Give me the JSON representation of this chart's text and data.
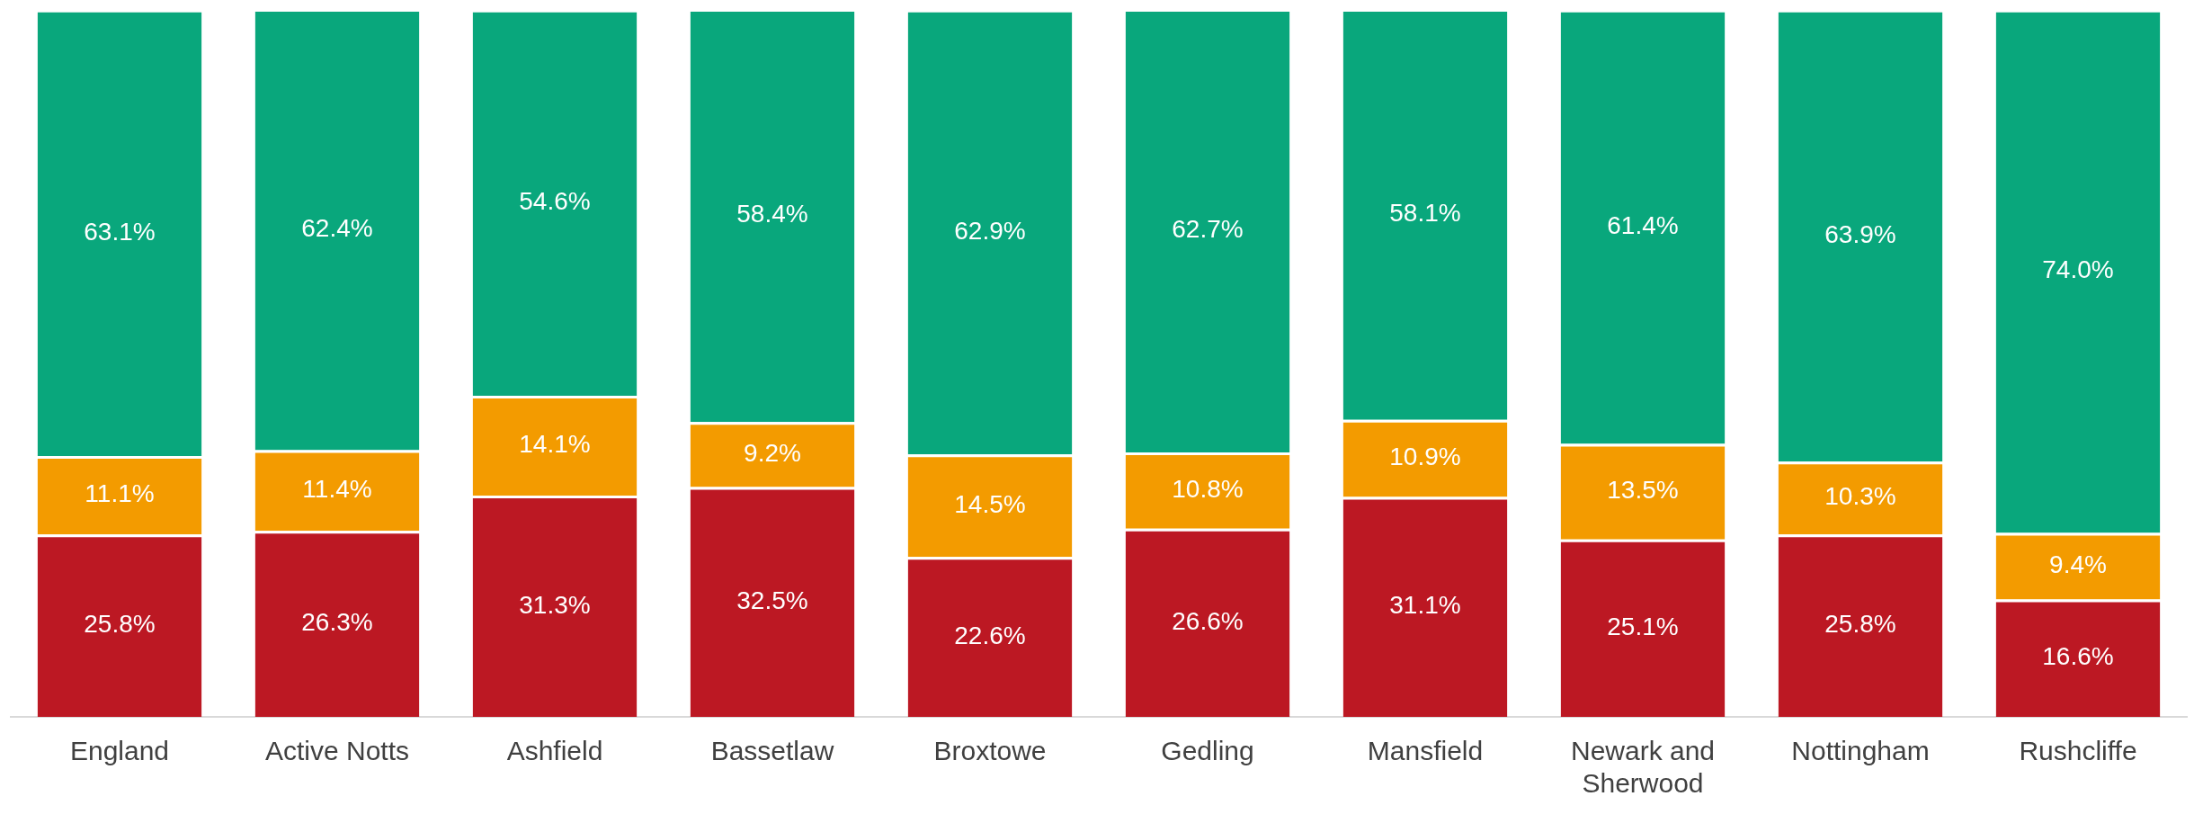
{
  "chart_data": {
    "type": "bar",
    "stacked": true,
    "legend": false,
    "categories": [
      "England",
      "Active Notts",
      "Ashfield",
      "Bassetlaw",
      "Broxtowe",
      "Gedling",
      "Mansfield",
      "Newark and Sherwood",
      "Nottingham",
      "Rushcliffe"
    ],
    "series": [
      {
        "color": "#bc1823",
        "values": [
          25.8,
          26.3,
          31.3,
          32.5,
          22.6,
          26.6,
          31.1,
          25.1,
          25.8,
          16.6
        ],
        "value_labels": [
          "25.8%",
          "26.3%",
          "31.3%",
          "32.5%",
          "22.6%",
          "26.6%",
          "31.1%",
          "25.1%",
          "25.8%",
          "16.6%"
        ]
      },
      {
        "color": "#f39b00",
        "values": [
          11.1,
          11.4,
          14.1,
          9.2,
          14.5,
          10.8,
          10.9,
          13.5,
          10.3,
          9.4
        ],
        "value_labels": [
          "11.1%",
          "11.4%",
          "14.1%",
          "9.2%",
          "14.5%",
          "10.8%",
          "10.9%",
          "13.5%",
          "10.3%",
          "9.4%"
        ]
      },
      {
        "color": "#09a77c",
        "values": [
          63.1,
          62.4,
          54.6,
          58.4,
          62.9,
          62.7,
          58.1,
          61.4,
          63.9,
          74.0
        ],
        "value_labels": [
          "63.1%",
          "62.4%",
          "54.6%",
          "58.4%",
          "62.9%",
          "62.7%",
          "58.1%",
          "61.4%",
          "63.9%",
          "74.0%"
        ]
      }
    ]
  }
}
